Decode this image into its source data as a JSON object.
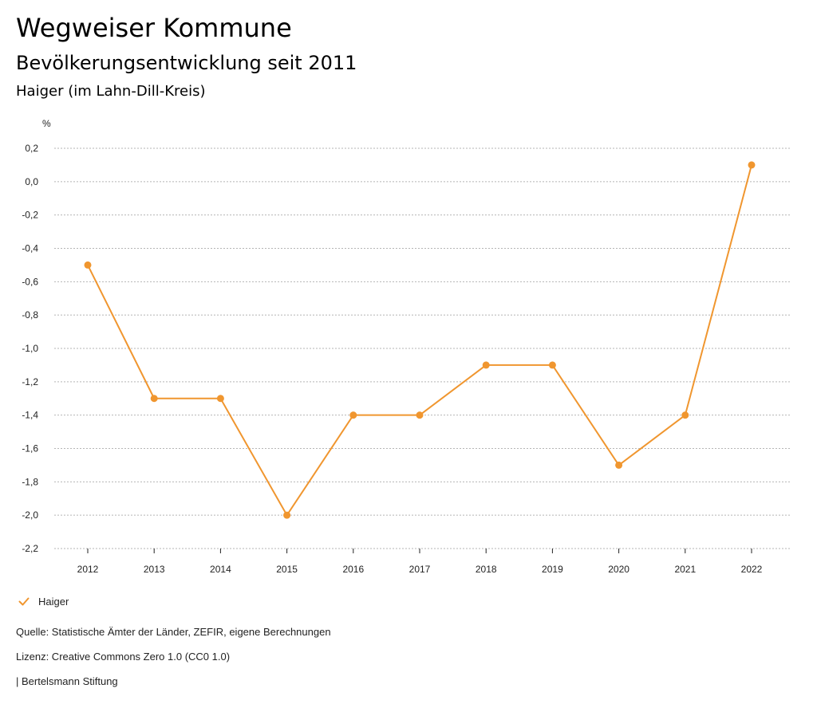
{
  "header": {
    "title": "Wegweiser Kommune",
    "subtitle": "Bevölkerungsentwicklung seit 2011",
    "region": "Haiger (im Lahn-Dill-Kreis)"
  },
  "legend": {
    "label": "Haiger",
    "icon": "check-icon"
  },
  "footer": {
    "source": "Quelle: Statistische Ämter der Länder, ZEFIR, eigene Berechnungen",
    "license": "Lizenz: Creative Commons Zero 1.0 (CC0 1.0)",
    "credit": "| Bertelsmann Stiftung"
  },
  "colors": {
    "series": "#f0962f",
    "grid": "#b5b5b5",
    "axis": "#222222"
  },
  "chart_data": {
    "type": "line",
    "title": "",
    "xlabel": "",
    "ylabel": "%",
    "x": [
      "2012",
      "2013",
      "2014",
      "2015",
      "2016",
      "2017",
      "2018",
      "2019",
      "2020",
      "2021",
      "2022"
    ],
    "ylim": [
      -2.2,
      0.2
    ],
    "yticks": [
      0.2,
      0.0,
      -0.2,
      -0.4,
      -0.6,
      -0.8,
      -1.0,
      -1.2,
      -1.4,
      -1.6,
      -1.8,
      -2.0,
      -2.2
    ],
    "ytick_labels": [
      "0,2",
      "0,0",
      "-0,2",
      "-0,4",
      "-0,6",
      "-0,8",
      "-1,0",
      "-1,2",
      "-1,4",
      "-1,6",
      "-1,8",
      "-2,0",
      "-2,2"
    ],
    "grid": true,
    "legend_position": "bottom-left",
    "series": [
      {
        "name": "Haiger",
        "values": [
          -0.5,
          -1.3,
          -1.3,
          -2.0,
          -1.4,
          -1.4,
          -1.1,
          -1.1,
          -1.7,
          -1.4,
          0.1
        ]
      }
    ]
  }
}
